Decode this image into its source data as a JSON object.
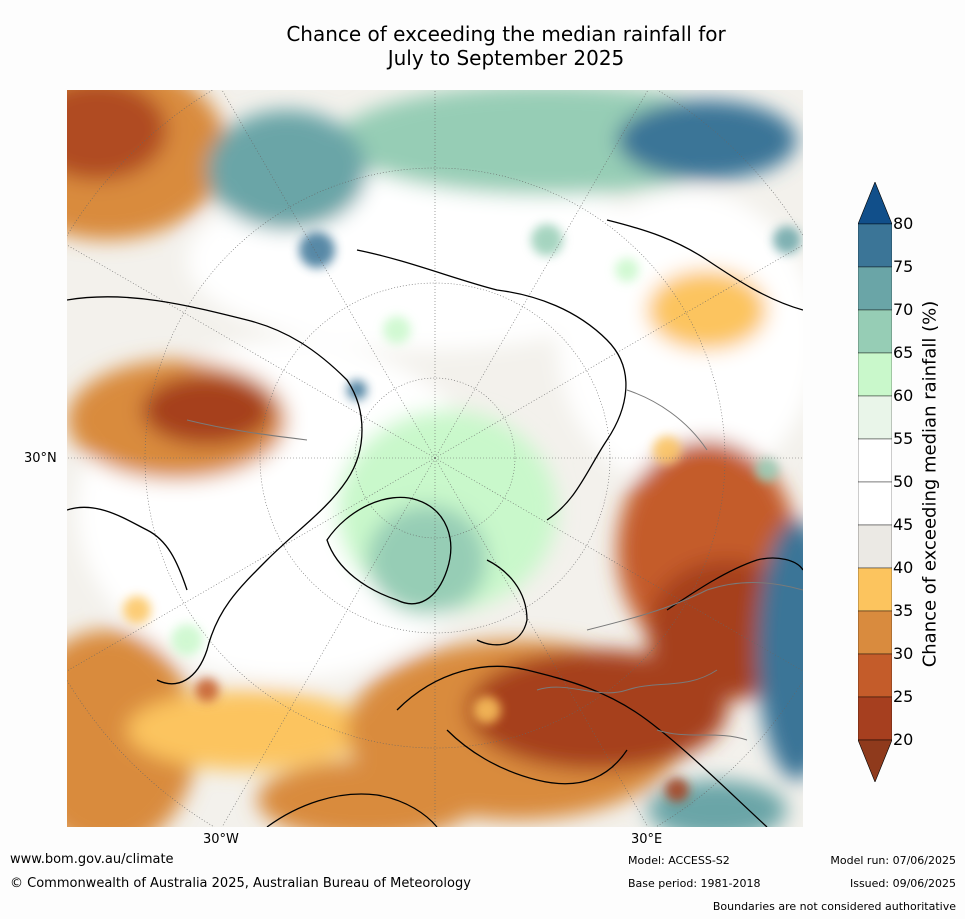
{
  "title_line1": "Chance of exceeding the median rainfall for",
  "title_line2": "July to September 2025",
  "map": {
    "projection": "north-polar-stereographic",
    "lat_label": "30°N",
    "lon_labels": [
      "30°W",
      "30°E"
    ],
    "palette": {
      "20": "#a63f1f",
      "25": "#c45c2a",
      "30": "#d98b3e",
      "35": "#fcc45e",
      "40": "#ebe9e4",
      "45": "#ffffff",
      "50": "#ffffff",
      "55": "#e9f5e9",
      "60": "#c9f8cb",
      "65": "#96cdb5",
      "70": "#6aa5a7",
      "75": "#3b7597",
      "80": "#114f8a"
    }
  },
  "colorbar": {
    "title": "Chance of exceeding median rainfall (%)",
    "ticks": [
      "80",
      "75",
      "70",
      "65",
      "60",
      "55",
      "50",
      "45",
      "40",
      "35",
      "30",
      "25",
      "20"
    ],
    "low_extend_color": "#8f3a1c",
    "high_extend_color": "#114f8a"
  },
  "footer": {
    "url": "www.bom.gov.au/climate",
    "copyright": "© Commonwealth of Australia 2025, Australian Bureau of Meteorology",
    "model": "Model: ACCESS-S2",
    "base_period": "Base period: 1981-2018",
    "model_run": "Model run: 07/06/2025",
    "issued": "Issued: 09/06/2025",
    "disclaimer": "Boundaries are not considered authoritative"
  }
}
